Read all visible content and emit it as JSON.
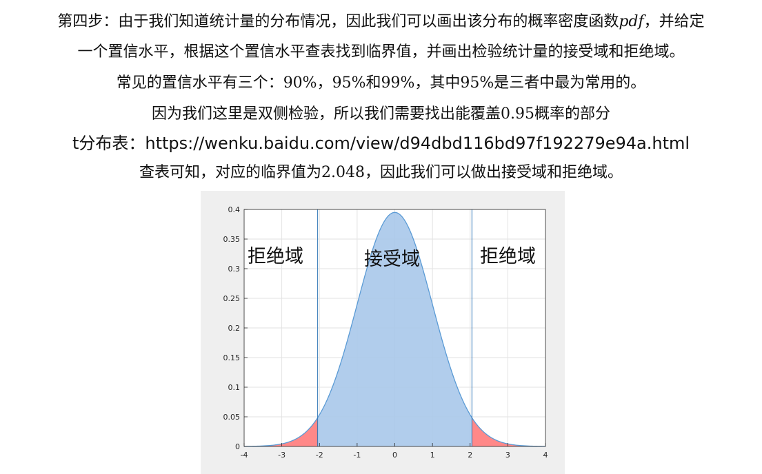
{
  "text": {
    "step_line_a": "第四步：由于我们知道统计量的分布情况，因此我们可以画出该分布的概率密度函数",
    "step_line_pdf": "pdf",
    "step_line_b": "，并给定",
    "line2": "一个置信水平，根据这个置信水平查表找到临界值，并画出检验统计量的接受域和拒绝域。",
    "line3": "常见的置信水平有三个：90%，95%和99%，其中95%是三者中最为常用的。",
    "line4": "因为我们这里是双侧检验，所以我们需要找出能覆盖0.95概率的部分",
    "line5_label": "t分布表：",
    "line5_url": "https://wenku.baidu.com/view/d94dbd116bd97f192279e94a.html",
    "line6": "查表可知，对应的临界值为2.048，因此我们可以做出接受域和拒绝域。"
  },
  "figure": {
    "left_region_label": "拒绝域",
    "center_region_label": "接受域",
    "right_region_label": "拒绝域"
  },
  "chart_data": {
    "type": "area",
    "title": "",
    "xlabel": "",
    "ylabel": "",
    "xlim": [
      -4,
      4
    ],
    "ylim": [
      0,
      0.4
    ],
    "x_ticks": [
      -4,
      -3,
      -2,
      -1,
      0,
      1,
      2,
      3,
      4
    ],
    "y_ticks": [
      0,
      0.05,
      0.1,
      0.15,
      0.2,
      0.25,
      0.3,
      0.35,
      0.4
    ],
    "y_tick_labels": [
      "0",
      "0.05",
      "0.1",
      "0.15",
      "0.2",
      "0.25",
      "0.3",
      "0.35",
      "0.4"
    ],
    "grid": true,
    "critical_values": [
      -2.048,
      2.048
    ],
    "x": [
      -4,
      -3.5,
      -3,
      -2.5,
      -2.048,
      -1.5,
      -1,
      -0.5,
      0,
      0.5,
      1,
      1.5,
      2.048,
      2.5,
      3,
      3.5,
      4
    ],
    "density": [
      0.0003,
      0.0011,
      0.0059,
      0.0196,
      0.0494,
      0.13,
      0.242,
      0.3521,
      0.395,
      0.3521,
      0.242,
      0.13,
      0.0494,
      0.0196,
      0.0059,
      0.0011,
      0.0003
    ],
    "regions": [
      {
        "label": "拒绝域",
        "from": -4,
        "to": -2.048,
        "color": "#ff7b7b"
      },
      {
        "label": "接受域",
        "from": -2.048,
        "to": 2.048,
        "color": "#a9c8ea"
      },
      {
        "label": "拒绝域",
        "from": 2.048,
        "to": 4,
        "color": "#ff7b7b"
      }
    ],
    "curve_color": "#5b9bd5",
    "critical_line_color": "#2e75b6"
  }
}
